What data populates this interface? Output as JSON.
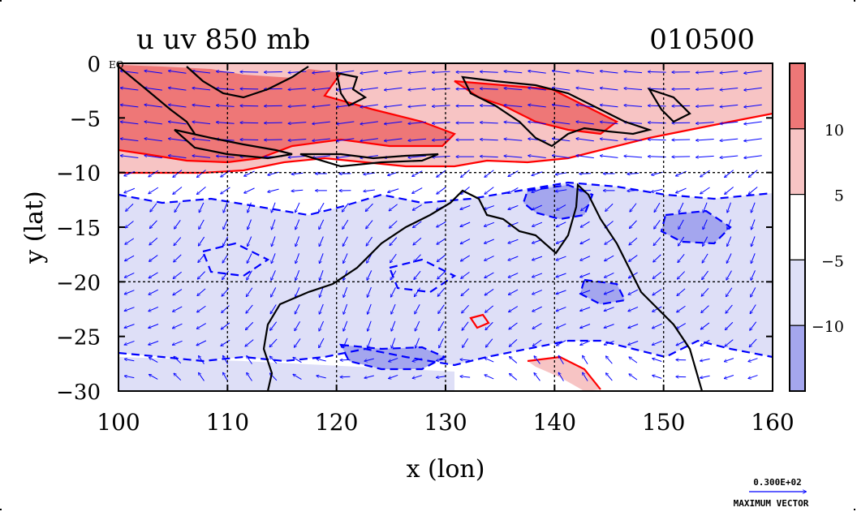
{
  "title": {
    "left": "u uv 850 mb",
    "right": "010500"
  },
  "chart_data": {
    "type": "heatmap",
    "xlabel": "x (lon)",
    "ylabel": "y (lat)",
    "xlim": [
      100,
      160
    ],
    "ylim": [
      -30,
      0
    ],
    "x_ticks": [
      100,
      110,
      120,
      130,
      140,
      150,
      160
    ],
    "y_ticks": [
      0,
      -5,
      -10,
      -15,
      -20,
      -25,
      -30
    ],
    "y_tick_labels": [
      "0",
      "−5",
      "−10",
      "−15",
      "−20",
      "−25",
      "−30"
    ],
    "eq_label": "EQ",
    "grid": true,
    "colorbar": {
      "levels": [
        15,
        10,
        5,
        -5,
        -10,
        -15
      ],
      "labels": [
        "10",
        "5",
        "−5",
        "−10"
      ],
      "colors": [
        "#ee7777",
        "#f7c4c4",
        "#ffffff",
        "#dedff7",
        "#a4a6ee"
      ]
    },
    "vector_key": {
      "value_label": "0.300E+02",
      "caption": "MAXIMUM VECTOR"
    },
    "colors": {
      "positive_contour": "#ff0000",
      "negative_contour": "#0000ff",
      "coastline": "#000000",
      "vector": "#0000ff"
    }
  }
}
